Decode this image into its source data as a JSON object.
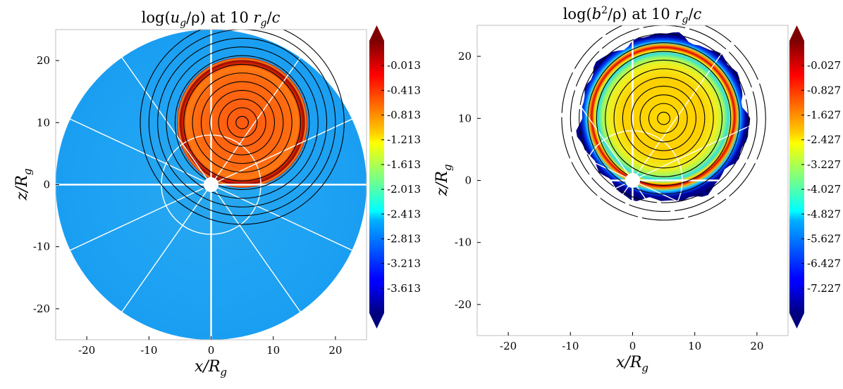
{
  "chart_data": [
    {
      "type": "heatmap",
      "title": "log(u_g/ρ) at 10 r_g/c",
      "title_parts": {
        "pre": "log(",
        "var": "u",
        "sub": "g",
        "mid": "/ρ) at 10 ",
        "r": "r",
        "rsub": "g",
        "post": "/",
        "c": "c"
      },
      "xlabel": {
        "var": "x/R",
        "sub": "g"
      },
      "ylabel": {
        "var": "z/R",
        "sub": "g"
      },
      "xlim": [
        -25,
        25
      ],
      "ylim": [
        -25,
        25
      ],
      "xticks": [
        -20,
        -10,
        0,
        10,
        20
      ],
      "yticks": [
        -20,
        -10,
        0,
        10,
        20
      ],
      "colorbar_ticks": [
        "-0.013",
        "-0.413",
        "-0.813",
        "-1.213",
        "-1.613",
        "-2.013",
        "-2.413",
        "-2.813",
        "-3.213",
        "-3.613"
      ],
      "colorbar_range": [
        -4.013,
        0.387
      ],
      "domain_radius": 25,
      "black_hole_radius": 1.2,
      "blob_center": [
        5,
        10
      ],
      "blob_radius": 10.5,
      "background_level": -2.4,
      "blob_level": -0.6,
      "contour_center": [
        5,
        10
      ],
      "contour_radii": [
        1,
        2.4,
        3.8,
        5.2,
        6.6,
        8,
        9.4,
        10.8,
        12.2,
        13.6,
        15,
        16.4
      ],
      "white_circle_radius": 8,
      "spoke_angles_deg": [
        0,
        25,
        55,
        90,
        125,
        155,
        180,
        205,
        235,
        270,
        305,
        335
      ],
      "fill_edge": "solid"
    },
    {
      "type": "heatmap",
      "title": "log(b²/ρ) at 10 r_g/c",
      "title_parts": {
        "pre": "log(",
        "var": "b",
        "sup": "2",
        "mid": "/ρ) at 10 ",
        "r": "r",
        "rsub": "g",
        "post": "/",
        "c": "c"
      },
      "xlabel": {
        "var": "x/R",
        "sub": "g"
      },
      "ylabel": {
        "var": "z/R",
        "sub": "g"
      },
      "xlim": [
        -25,
        25
      ],
      "ylim": [
        -25,
        25
      ],
      "xticks": [
        -20,
        -10,
        0,
        10,
        20
      ],
      "yticks": [
        -20,
        -10,
        0,
        10,
        20
      ],
      "colorbar_ticks": [
        "-0.027",
        "-0.827",
        "-1.627",
        "-2.427",
        "-3.227",
        "-4.027",
        "-4.827",
        "-5.627",
        "-6.427",
        "-7.227"
      ],
      "colorbar_range": [
        -8.027,
        0.773
      ],
      "black_hole_radius": 1.2,
      "blob_center": [
        5,
        10
      ],
      "blob_radius": 13.5,
      "edge_level": -7.6,
      "ring_level": -0.9,
      "inner_level": -2.4,
      "contour_center": [
        5,
        10
      ],
      "contour_radii": [
        1,
        2.4,
        3.8,
        5.2,
        6.6,
        8,
        9.4,
        10.8,
        12.2,
        13.6,
        15,
        16.4
      ],
      "white_circle_radius": 8,
      "spoke_angles_deg": [
        0,
        25,
        55,
        90,
        125,
        155,
        180,
        205,
        235,
        270,
        305,
        335
      ],
      "fill_edge": "ragged"
    }
  ]
}
